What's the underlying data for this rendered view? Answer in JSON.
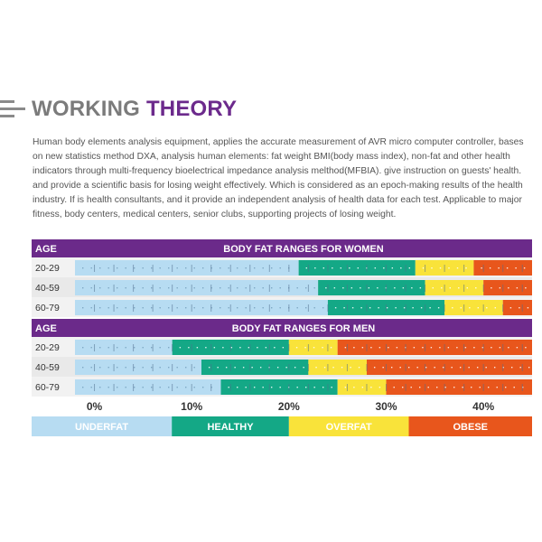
{
  "heading": {
    "word1": "WORKING",
    "word2": "THEORY"
  },
  "intro": "Human body elements analysis equipment, applies the accurate measurement of AVR micro computer controller, bases on new statistics method DXA, analysis human elements: fat weight BMI(body mass index), non-fat and other health indicators through multi-frequency bioelectrical impedance analysis melthod(MFBIA). give instruction on guests' health. and provide a scientific basis for losing weight effectively. Which is considered as an epoch-making results of the health industry. If is health consultants, and it provide an independent analysis of health data for each test. Applicable to major fitness, body centers, medical centers, senior clubs, supporting projects of losing weight.",
  "colors": {
    "header": "#6b2a8a",
    "underfat": "#b7dcf2",
    "healthy": "#14a886",
    "overfat": "#f9e33a",
    "obese": "#e8561c"
  },
  "chart_data": {
    "type": "bar",
    "orientation": "horizontal-stacked",
    "xlim": [
      -2,
      45
    ],
    "ticks": [
      "0%",
      "10%",
      "20%",
      "30%",
      "40%"
    ],
    "tick_values": [
      0,
      10,
      20,
      30,
      40
    ],
    "categories_order": [
      "UNDERFAT",
      "HEALTHY",
      "OVERFAT",
      "OBESE"
    ],
    "groups": [
      {
        "age_header": "AGE",
        "title": "BODY FAT RANGES FOR WOMEN",
        "rows": [
          {
            "age": "20-29",
            "ranges": [
              21,
              33,
              39
            ]
          },
          {
            "age": "40-59",
            "ranges": [
              23,
              34,
              40
            ]
          },
          {
            "age": "60-79",
            "ranges": [
              24,
              36,
              42
            ]
          }
        ]
      },
      {
        "age_header": "AGE",
        "title": "BODY FAT RANGES FOR MEN",
        "rows": [
          {
            "age": "20-29",
            "ranges": [
              8,
              20,
              25
            ]
          },
          {
            "age": "40-59",
            "ranges": [
              11,
              22,
              28
            ]
          },
          {
            "age": "60-79",
            "ranges": [
              13,
              25,
              30
            ]
          }
        ]
      }
    ],
    "legend": [
      {
        "label": "UNDERFAT",
        "color": "#b7dcf2",
        "text_color": "#ffffff"
      },
      {
        "label": "HEALTHY",
        "color": "#14a886",
        "text_color": "#ffffff"
      },
      {
        "label": "OVERFAT",
        "color": "#f9e33a",
        "text_color": "#ffffff"
      },
      {
        "label": "OBESE",
        "color": "#e8561c",
        "text_color": "#ffffff"
      }
    ]
  }
}
